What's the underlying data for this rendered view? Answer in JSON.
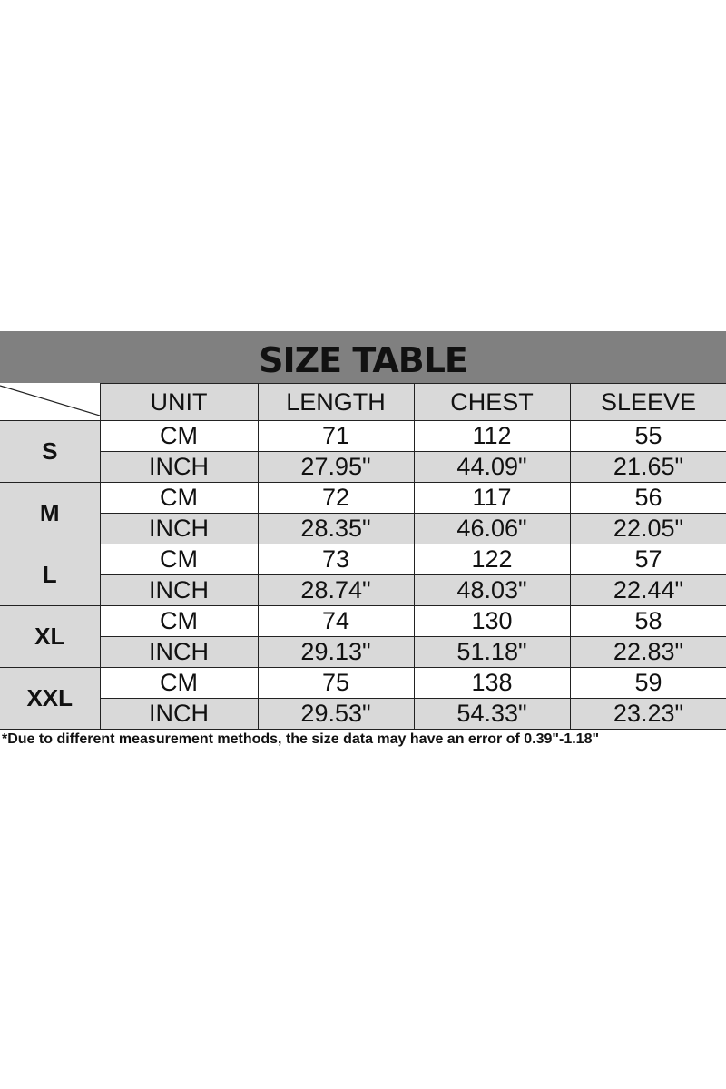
{
  "title": "SIZE TABLE",
  "headers": [
    "UNIT",
    "LENGTH",
    "CHEST",
    "SLEEVE"
  ],
  "rows": [
    {
      "size": "S",
      "cm": [
        "CM",
        "71",
        "112",
        "55"
      ],
      "inch": [
        "INCH",
        "27.95\"",
        "44.09\"",
        "21.65\""
      ]
    },
    {
      "size": "M",
      "cm": [
        "CM",
        "72",
        "117",
        "56"
      ],
      "inch": [
        "INCH",
        "28.35\"",
        "46.06\"",
        "22.05\""
      ]
    },
    {
      "size": "L",
      "cm": [
        "CM",
        "73",
        "122",
        "57"
      ],
      "inch": [
        "INCH",
        "28.74\"",
        "48.03\"",
        "22.44\""
      ]
    },
    {
      "size": "XL",
      "cm": [
        "CM",
        "74",
        "130",
        "58"
      ],
      "inch": [
        "INCH",
        "29.13\"",
        "51.18\"",
        "22.83\""
      ]
    },
    {
      "size": "XXL",
      "cm": [
        "CM",
        "75",
        "138",
        "59"
      ],
      "inch": [
        "INCH",
        "29.53\"",
        "54.33\"",
        "23.23\""
      ]
    }
  ],
  "footnote": "*Due to different measurement methods, the size data may have an error of 0.39\"-1.18\""
}
